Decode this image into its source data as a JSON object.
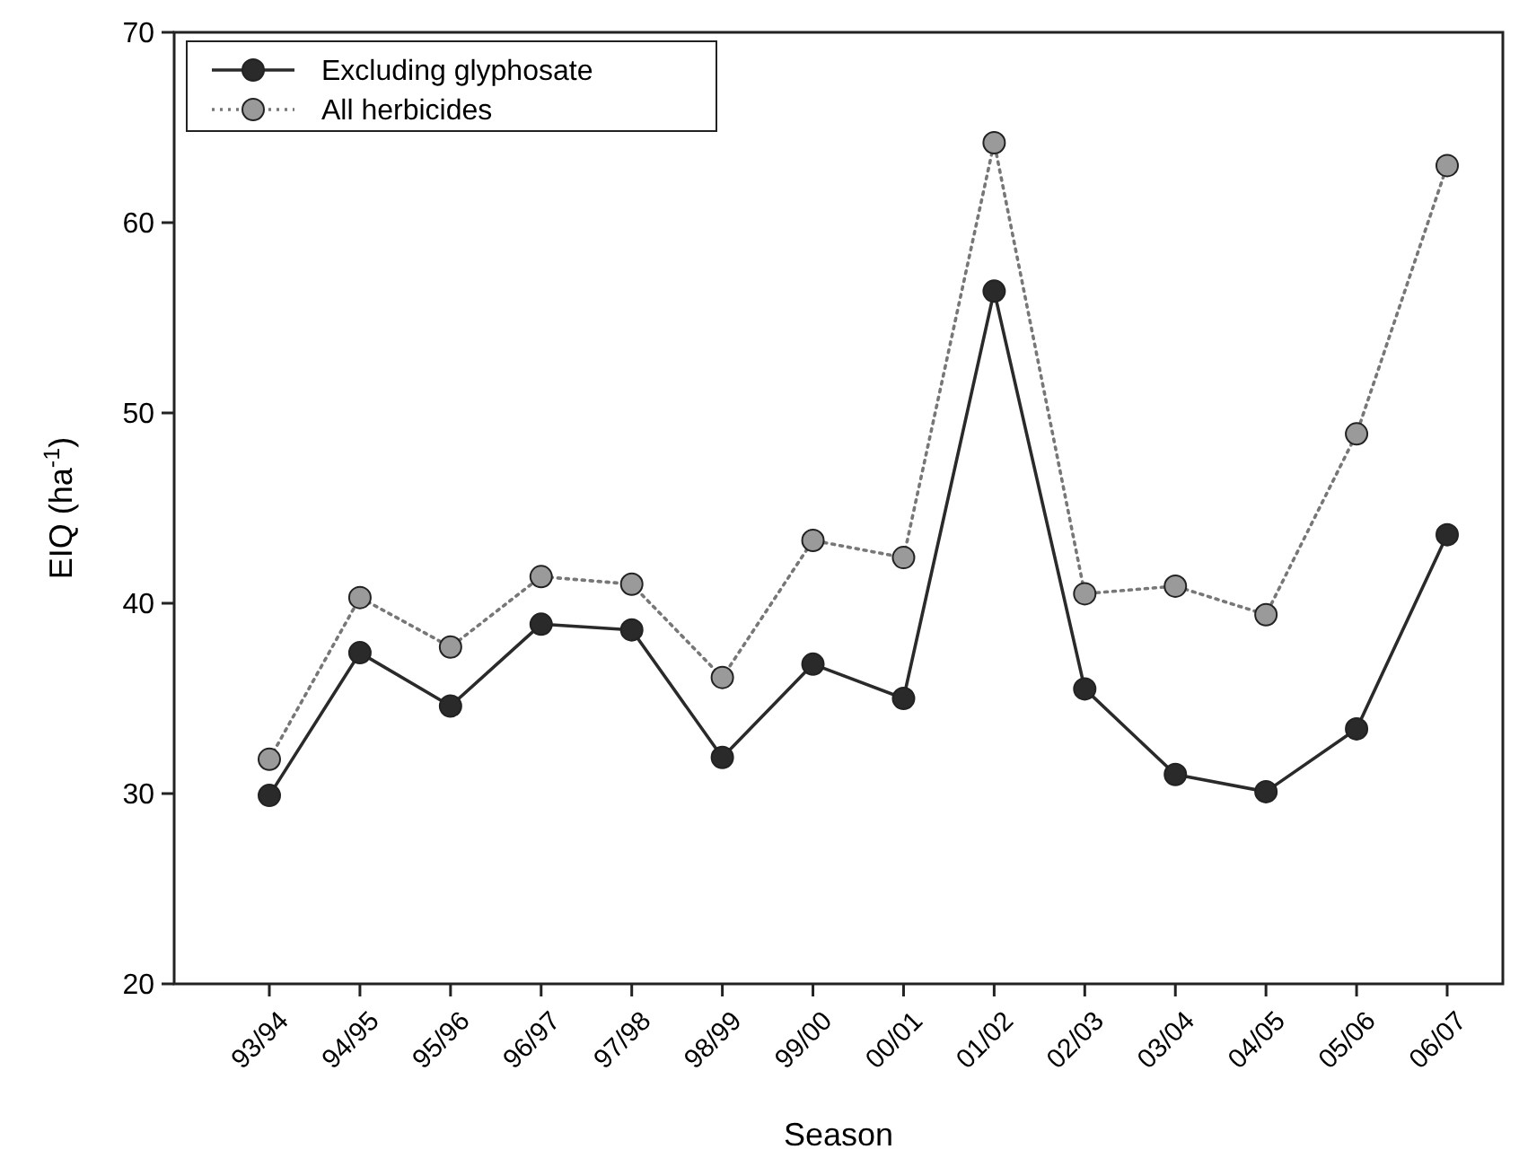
{
  "chart_data": {
    "type": "line",
    "xlabel": "Season",
    "ylabel": "EIQ (ha$^{-1}$)",
    "categories": [
      "93/94",
      "94/95",
      "95/96",
      "96/97",
      "97/98",
      "98/99",
      "99/00",
      "00/01",
      "01/02",
      "02/03",
      "03/04",
      "04/05",
      "05/06",
      "06/07"
    ],
    "series": [
      {
        "name": "Excluding glyphosate",
        "color": "#2a2a2a",
        "line_style": "solid",
        "values": [
          29.9,
          37.4,
          34.6,
          38.9,
          38.6,
          31.9,
          36.8,
          35.0,
          56.4,
          35.5,
          31.0,
          30.1,
          33.4,
          43.6
        ]
      },
      {
        "name": "All herbicides",
        "color": "#9a9a9a",
        "line_style": "dotted",
        "values": [
          31.8,
          40.3,
          37.7,
          41.4,
          41.0,
          36.1,
          43.3,
          42.4,
          64.2,
          40.5,
          40.9,
          39.4,
          48.9,
          63.0
        ]
      }
    ],
    "ylim": [
      20,
      70
    ],
    "yticks": [
      20,
      30,
      40,
      50,
      60,
      70
    ],
    "grid": false,
    "legend": "top left",
    "marker": "circle"
  }
}
